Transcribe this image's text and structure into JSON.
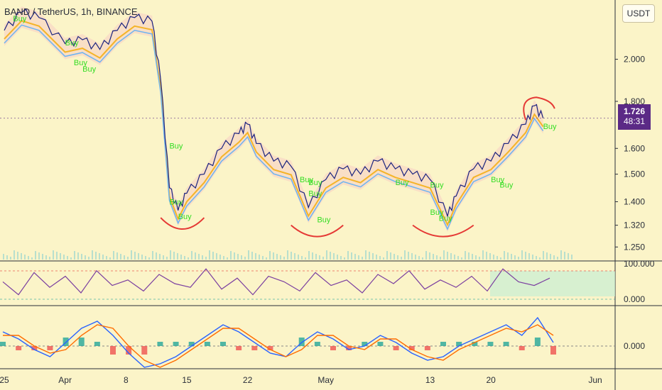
{
  "header": {
    "title": "BAND / TetherUS, 1h, BINANCE",
    "currency_button": "USDT"
  },
  "price_tag": {
    "price": "1.726",
    "countdown": "48:31"
  },
  "colors": {
    "background": "#fbf4c8",
    "price_line": "#1a237e",
    "buy_label": "#33dd22",
    "annotation": "#e53935",
    "price_tag": "#5b2a86",
    "rsi_line": "#7b3fa0",
    "stoch_fast": "#2962ff",
    "stoch_slow": "#ff6d00",
    "hist_pos": "#26a69a",
    "hist_neg": "#ef5350"
  },
  "chart_data": [
    {
      "type": "line",
      "title": "BAND / TetherUS, 1h, BINANCE",
      "y_scale": "log",
      "y_ticks": [
        "2.000",
        "1.800",
        "1.600",
        "1.500",
        "1.400",
        "1.320",
        "1.250"
      ],
      "x_ticks": [
        "25",
        "Apr",
        "8",
        "15",
        "22",
        "May",
        "13",
        "20",
        "Jun"
      ],
      "series": [
        {
          "name": "",
          "x": [
            "Mar 25",
            "Mar 27",
            "Mar 29",
            "Apr 1",
            "Apr 3",
            "Apr 5",
            "Apr 7",
            "Apr 9",
            "Apr 11",
            "Apr 12",
            "Apr 13",
            "Apr 14",
            "Apr 15",
            "Apr 17",
            "Apr 19",
            "Apr 21",
            "Apr 22",
            "Apr 23",
            "Apr 25",
            "Apr 27",
            "Apr 29",
            "May 1",
            "May 3",
            "May 5",
            "May 7",
            "May 9",
            "May 11",
            "May 13",
            "May 15",
            "May 16",
            "May 18",
            "May 20",
            "May 22",
            "May 24",
            "May 25",
            "May 26"
          ],
          "values": [
            2.15,
            2.25,
            2.22,
            2.08,
            2.1,
            2.05,
            2.15,
            2.22,
            2.2,
            1.9,
            1.45,
            1.37,
            1.43,
            1.5,
            1.6,
            1.66,
            1.7,
            1.62,
            1.55,
            1.53,
            1.38,
            1.48,
            1.52,
            1.5,
            1.55,
            1.52,
            1.5,
            1.48,
            1.35,
            1.42,
            1.52,
            1.55,
            1.62,
            1.7,
            1.78,
            1.726
          ]
        }
      ],
      "labels": [
        {
          "text": "Buy",
          "x": "Mar 26",
          "y": 2.2
        },
        {
          "text": "Buy",
          "x": "Apr 1",
          "y": 2.07
        },
        {
          "text": "Buy",
          "x": "Apr 2",
          "y": 1.97
        },
        {
          "text": "Buy",
          "x": "Apr 3",
          "y": 1.94
        },
        {
          "text": "Buy",
          "x": "Apr 13",
          "y": 1.6
        },
        {
          "text": "Buy",
          "x": "Apr 13",
          "y": 1.39
        },
        {
          "text": "Buy",
          "x": "Apr 14",
          "y": 1.34
        },
        {
          "text": "Buy",
          "x": "Apr 28",
          "y": 1.47
        },
        {
          "text": "Buy",
          "x": "Apr 29",
          "y": 1.46
        },
        {
          "text": "Buy",
          "x": "Apr 29",
          "y": 1.42
        },
        {
          "text": "Buy",
          "x": "Apr 30",
          "y": 1.33
        },
        {
          "text": "Buy",
          "x": "May 9",
          "y": 1.46
        },
        {
          "text": "Buy",
          "x": "May 13",
          "y": 1.45
        },
        {
          "text": "Buy",
          "x": "May 13",
          "y": 1.355
        },
        {
          "text": "Buy",
          "x": "May 14",
          "y": 1.335
        },
        {
          "text": "Buy",
          "x": "May 20",
          "y": 1.47
        },
        {
          "text": "Buy",
          "x": "May 21",
          "y": 1.45
        },
        {
          "text": "Buy",
          "x": "May 26",
          "y": 1.68
        }
      ]
    },
    {
      "type": "line",
      "y_ticks": [
        "100.000",
        "0.000"
      ],
      "series": [
        {
          "name": "",
          "values": [
            55,
            20,
            80,
            40,
            70,
            25,
            85,
            45,
            60,
            30,
            75,
            50,
            40,
            90,
            35,
            65,
            20,
            70,
            55,
            30,
            80,
            45,
            60,
            25,
            75,
            50,
            85,
            35,
            60,
            40,
            70,
            30,
            90,
            55,
            45,
            65
          ]
        }
      ]
    },
    {
      "type": "line",
      "y_ticks": [
        "0.000"
      ],
      "series": [
        {
          "name": "",
          "values": [
            0.4,
            0.2,
            -0.1,
            -0.3,
            0.1,
            0.5,
            0.7,
            0.3,
            -0.2,
            -0.6,
            -0.5,
            -0.3,
            0.0,
            0.3,
            0.6,
            0.4,
            0.1,
            -0.2,
            -0.3,
            0.1,
            0.4,
            0.2,
            -0.1,
            0.0,
            0.3,
            0.1,
            -0.2,
            -0.4,
            -0.3,
            0.0,
            0.2,
            0.4,
            0.6,
            0.3,
            0.8,
            0.1
          ]
        },
        {
          "name": "",
          "values": [
            0.3,
            0.3,
            0.0,
            -0.2,
            -0.1,
            0.3,
            0.6,
            0.5,
            0.0,
            -0.4,
            -0.6,
            -0.4,
            -0.1,
            0.2,
            0.5,
            0.5,
            0.2,
            -0.1,
            -0.3,
            -0.1,
            0.3,
            0.3,
            0.0,
            -0.1,
            0.2,
            0.2,
            -0.1,
            -0.3,
            -0.4,
            -0.1,
            0.1,
            0.3,
            0.5,
            0.4,
            0.6,
            0.3
          ]
        }
      ]
    }
  ]
}
